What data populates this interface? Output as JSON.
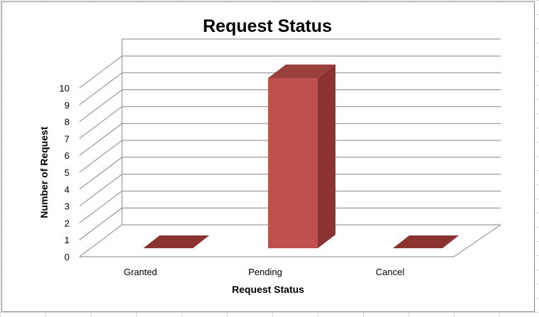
{
  "chart_data": {
    "type": "bar",
    "title": "Request Status",
    "xlabel": "Request Status",
    "ylabel": "Number of Request",
    "categories": [
      "Granted",
      "Pending",
      "Cancel"
    ],
    "values": [
      0,
      10,
      0
    ],
    "ylim": [
      0,
      10
    ],
    "yticks": [
      "0",
      "1",
      "2",
      "3",
      "4",
      "5",
      "6",
      "7",
      "8",
      "9",
      "10"
    ],
    "grid": true,
    "legend": "none",
    "style": "3d-column",
    "colors": {
      "bar_front": "#c0504d",
      "bar_side": "#8b3330",
      "bar_top": "#99403d",
      "grid": "#868686"
    }
  }
}
